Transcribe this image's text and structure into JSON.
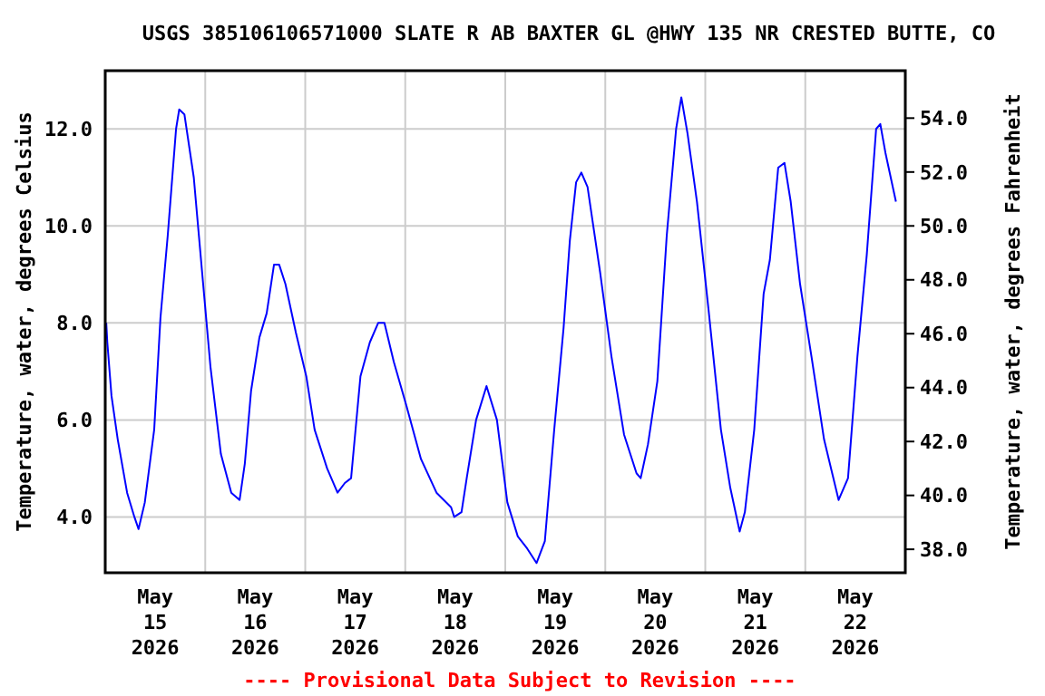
{
  "chart_data": {
    "type": "line",
    "title": "USGS 385106106571000 SLATE R AB BAXTER GL @HWY 135 NR CRESTED BUTTE, CO",
    "ylabel": "Temperature, water, degrees Celsius",
    "y2label": "Temperature, water, degrees Fahrenheit",
    "annotations": [
      "---- Provisional Data Subject to Revision ----"
    ],
    "x": [
      "2026-05-15T00:15",
      "2026-05-15T00:30",
      "2026-05-15T01:30",
      "2026-05-15T03:00",
      "2026-05-15T05:15",
      "2026-05-15T07:00",
      "2026-05-15T08:00",
      "2026-05-15T09:30",
      "2026-05-15T11:45",
      "2026-05-15T13:15",
      "2026-05-15T15:00",
      "2026-05-15T17:00",
      "2026-05-15T17:45",
      "2026-05-15T19:00",
      "2026-05-15T21:15",
      "2026-05-15T23:30",
      "2026-05-16T01:15",
      "2026-05-16T03:45",
      "2026-05-16T06:15",
      "2026-05-16T08:15",
      "2026-05-16T09:30",
      "2026-05-16T11:00",
      "2026-05-16T13:00",
      "2026-05-16T14:45",
      "2026-05-16T16:30",
      "2026-05-16T17:45",
      "2026-05-16T19:15",
      "2026-05-16T21:45",
      "2026-05-17T00:15",
      "2026-05-17T02:15",
      "2026-05-17T05:15",
      "2026-05-17T07:45",
      "2026-05-17T09:30",
      "2026-05-17T11:00",
      "2026-05-17T13:15",
      "2026-05-17T15:30",
      "2026-05-17T17:30",
      "2026-05-17T19:00",
      "2026-05-17T21:15",
      "2026-05-18T00:15",
      "2026-05-18T03:45",
      "2026-05-18T07:30",
      "2026-05-18T11:00",
      "2026-05-18T11:45",
      "2026-05-18T13:30",
      "2026-05-18T14:45",
      "2026-05-18T17:00",
      "2026-05-18T19:30",
      "2026-05-18T22:00",
      "2026-05-19T00:30",
      "2026-05-19T03:00",
      "2026-05-19T05:15",
      "2026-05-19T07:30",
      "2026-05-19T09:30",
      "2026-05-19T11:45",
      "2026-05-19T14:00",
      "2026-05-19T15:30",
      "2026-05-19T17:00",
      "2026-05-19T18:15",
      "2026-05-19T19:45",
      "2026-05-19T22:45",
      "2026-05-20T01:30",
      "2026-05-20T04:30",
      "2026-05-20T07:30",
      "2026-05-20T08:30",
      "2026-05-20T10:15",
      "2026-05-20T12:30",
      "2026-05-20T14:45",
      "2026-05-20T17:00",
      "2026-05-20T18:15",
      "2026-05-20T19:45",
      "2026-05-20T22:00",
      "2026-05-21T00:45",
      "2026-05-21T03:45",
      "2026-05-21T06:00",
      "2026-05-21T08:15",
      "2026-05-21T09:30",
      "2026-05-21T11:45",
      "2026-05-21T14:00",
      "2026-05-21T15:30",
      "2026-05-21T17:30",
      "2026-05-21T19:00",
      "2026-05-21T20:30",
      "2026-05-21T22:45",
      "2026-05-22T01:30",
      "2026-05-22T04:30",
      "2026-05-22T08:00",
      "2026-05-22T10:15",
      "2026-05-22T12:30",
      "2026-05-22T14:45",
      "2026-05-22T17:00",
      "2026-05-22T18:00",
      "2026-05-22T19:15",
      "2026-05-22T21:45"
    ],
    "series": [
      {
        "color": "#0000ff",
        "values": [
          8.0,
          7.6,
          6.5,
          5.6,
          4.5,
          4.0,
          3.75,
          4.3,
          5.8,
          8.1,
          9.8,
          12.0,
          12.4,
          12.3,
          11.0,
          8.8,
          7.1,
          5.3,
          4.5,
          4.35,
          5.1,
          6.6,
          7.7,
          8.2,
          9.2,
          9.2,
          8.8,
          7.8,
          6.9,
          5.8,
          5.0,
          4.5,
          4.7,
          4.8,
          6.9,
          7.6,
          8.0,
          8.0,
          7.2,
          6.3,
          5.2,
          4.5,
          4.2,
          4.0,
          4.1,
          4.8,
          6.0,
          6.7,
          6.0,
          4.3,
          3.6,
          3.35,
          3.05,
          3.5,
          5.8,
          7.9,
          9.7,
          10.9,
          11.1,
          10.8,
          9.05,
          7.3,
          5.7,
          4.9,
          4.8,
          5.5,
          6.8,
          9.8,
          12.0,
          12.65,
          11.9,
          10.5,
          8.3,
          5.8,
          4.6,
          3.7,
          4.1,
          5.8,
          8.6,
          9.3,
          11.2,
          11.3,
          10.5,
          8.8,
          7.3,
          5.6,
          4.35,
          4.8,
          7.3,
          9.4,
          12.0,
          12.1,
          11.5,
          10.5
        ]
      }
    ],
    "xlim": [
      "2026-05-15T00:00",
      "2026-05-23T00:00"
    ],
    "xticks": [
      {
        "value": "2026-05-15T12:00",
        "label": "May\n15\n2026"
      },
      {
        "value": "2026-05-16T12:00",
        "label": "May\n16\n2026"
      },
      {
        "value": "2026-05-17T12:00",
        "label": "May\n17\n2026"
      },
      {
        "value": "2026-05-18T12:00",
        "label": "May\n18\n2026"
      },
      {
        "value": "2026-05-19T12:00",
        "label": "May\n19\n2026"
      },
      {
        "value": "2026-05-20T12:00",
        "label": "May\n20\n2026"
      },
      {
        "value": "2026-05-21T12:00",
        "label": "May\n21\n2026"
      },
      {
        "value": "2026-05-22T12:00",
        "label": "May\n22\n2026"
      },
      {
        "value": "2026-05-16T00:00",
        "label": null
      },
      {
        "value": "2026-05-17T00:00",
        "label": null
      },
      {
        "value": "2026-05-18T00:00",
        "label": null
      },
      {
        "value": "2026-05-19T00:00",
        "label": null
      },
      {
        "value": "2026-05-20T00:00",
        "label": null
      },
      {
        "value": "2026-05-21T00:00",
        "label": null
      },
      {
        "value": "2026-05-22T00:00",
        "label": null
      }
    ],
    "ylim": [
      2.85,
      13.2
    ],
    "yticks": [
      {
        "value": 4,
        "label": "4.0"
      },
      {
        "value": 6,
        "label": "6.0"
      },
      {
        "value": 8,
        "label": "8.0"
      },
      {
        "value": 10,
        "label": "10.0"
      },
      {
        "value": 12,
        "label": "12.0"
      }
    ],
    "y2lim": [
      37.13,
      55.76
    ],
    "y2ticks": [
      {
        "value": 38,
        "label": "38.0"
      },
      {
        "value": 40,
        "label": "40.0"
      },
      {
        "value": 42,
        "label": "42.0"
      },
      {
        "value": 44,
        "label": "44.0"
      },
      {
        "value": 46,
        "label": "46.0"
      },
      {
        "value": 48,
        "label": "48.0"
      },
      {
        "value": 50,
        "label": "50.0"
      },
      {
        "value": 52,
        "label": "52.0"
      },
      {
        "value": 54,
        "label": "54.0"
      }
    ],
    "grid": true,
    "marker": "none",
    "line_style": "solid"
  }
}
